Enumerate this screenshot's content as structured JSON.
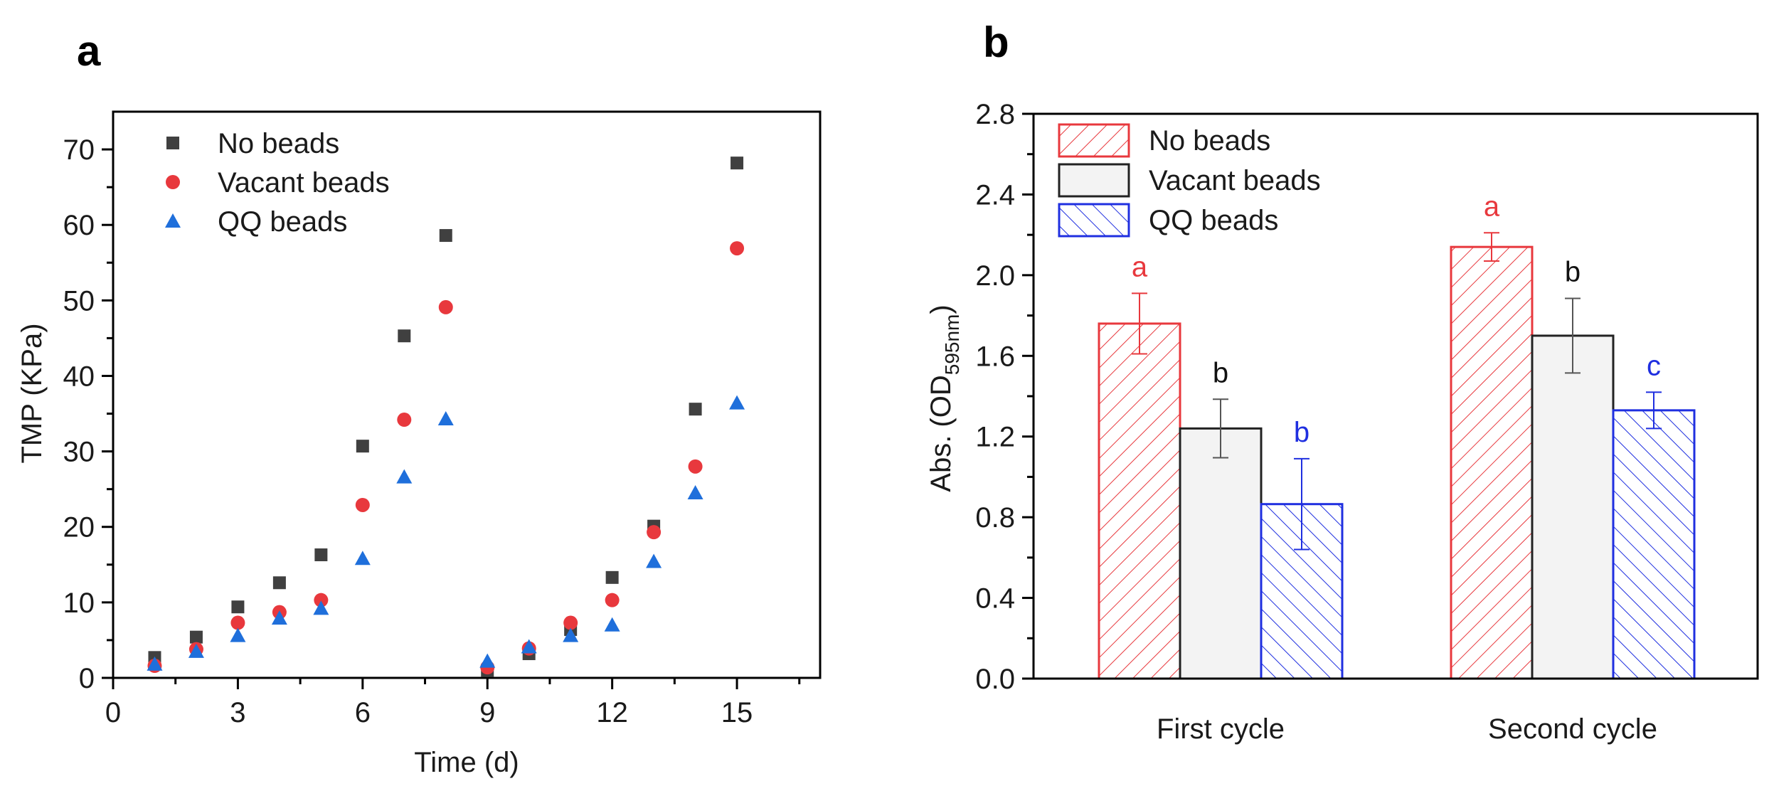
{
  "chart_data": [
    {
      "type": "scatter",
      "panel_label": "a",
      "xlabel": "Time (d)",
      "ylabel": "TMP (KPa)",
      "xlim": [
        0,
        17
      ],
      "ylim": [
        0,
        75
      ],
      "xticks": [
        0,
        3,
        6,
        9,
        12,
        15
      ],
      "yticks": [
        0,
        10,
        20,
        30,
        40,
        50,
        60,
        70
      ],
      "legend_position": "top-left",
      "series": [
        {
          "name": "No beads",
          "marker": "square",
          "color": "#404040",
          "x": [
            1,
            2,
            3,
            4,
            5,
            6,
            7,
            8,
            9,
            10,
            11,
            12,
            13,
            14,
            15
          ],
          "y": [
            2.7,
            5.4,
            9.4,
            12.6,
            16.3,
            30.7,
            45.3,
            58.6,
            1.0,
            3.2,
            6.4,
            13.3,
            20.1,
            35.6,
            68.2
          ]
        },
        {
          "name": "Vacant beads",
          "marker": "circle",
          "color": "#e8383d",
          "x": [
            1,
            2,
            3,
            4,
            5,
            6,
            7,
            8,
            9,
            10,
            11,
            12,
            13,
            14,
            15
          ],
          "y": [
            1.6,
            3.8,
            7.3,
            8.7,
            10.3,
            22.9,
            34.2,
            49.1,
            1.4,
            3.9,
            7.3,
            10.3,
            19.3,
            28.0,
            56.9
          ]
        },
        {
          "name": "QQ beads",
          "marker": "triangle",
          "color": "#1f6fdb",
          "x": [
            1,
            2,
            3,
            4,
            5,
            6,
            7,
            8,
            9,
            10,
            11,
            12,
            13,
            14,
            15
          ],
          "y": [
            1.8,
            3.5,
            5.6,
            7.9,
            9.2,
            15.8,
            26.6,
            34.3,
            2.2,
            4.1,
            5.6,
            7.0,
            15.4,
            24.5,
            36.4
          ]
        }
      ]
    },
    {
      "type": "bar",
      "panel_label": "b",
      "xlabel": "",
      "ylabel_main": "Abs. (OD",
      "ylabel_sub": "595nm",
      "ylabel_end": ")",
      "ylim": [
        0,
        2.8
      ],
      "yticks": [
        "0.0",
        "0.4",
        "0.8",
        "1.2",
        "1.6",
        "2.0",
        "2.4",
        "2.8"
      ],
      "categories": [
        "First cycle",
        "Second cycle"
      ],
      "legend_position": "top-left",
      "series": [
        {
          "name": "No beads",
          "color": "#e8383d",
          "fill": "hatch-forward",
          "values": [
            1.76,
            2.14
          ],
          "errors": [
            0.15,
            0.07
          ],
          "labels": [
            "a",
            "a"
          ]
        },
        {
          "name": "Vacant beads",
          "color": "#222222",
          "fill": "light-gray",
          "values": [
            1.24,
            1.7
          ],
          "errors": [
            0.145,
            0.185
          ],
          "labels": [
            "b",
            "b"
          ]
        },
        {
          "name": "QQ beads",
          "color": "#1f2fe0",
          "fill": "hatch-backward",
          "values": [
            0.865,
            1.33
          ],
          "errors": [
            0.225,
            0.09
          ],
          "labels": [
            "b",
            "c"
          ]
        }
      ]
    }
  ]
}
